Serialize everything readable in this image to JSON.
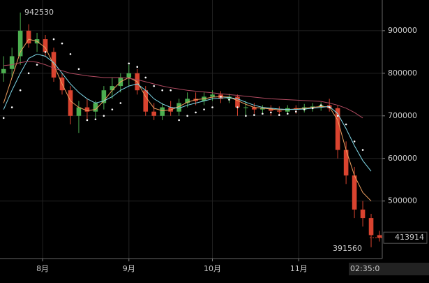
{
  "chart_data": {
    "type": "candlestick",
    "x": [
      1,
      4,
      7,
      10,
      13,
      16,
      19,
      22,
      25,
      28,
      31,
      34,
      37,
      40,
      43,
      46,
      49,
      52,
      55,
      58,
      61,
      64,
      67,
      70,
      73,
      76,
      79,
      82,
      85,
      88,
      91,
      94,
      97,
      100,
      103,
      106,
      109,
      112,
      115,
      118,
      121,
      124,
      127,
      130,
      133,
      136
    ],
    "open": [
      800000,
      810000,
      840000,
      900000,
      870000,
      880000,
      850000,
      790000,
      760000,
      700000,
      720000,
      710000,
      730000,
      760000,
      770000,
      790000,
      800000,
      760000,
      710000,
      700000,
      720000,
      710000,
      730000,
      740000,
      735000,
      745000,
      750000,
      740000,
      745000,
      720000,
      720000,
      715000,
      718000,
      712000,
      710000,
      718000,
      715000,
      720000,
      722000,
      725000,
      718000,
      620000,
      560000,
      480000,
      460000,
      420000
    ],
    "high": [
      840000,
      860000,
      942530,
      915000,
      895000,
      890000,
      860000,
      800000,
      770000,
      735000,
      740000,
      735000,
      770000,
      790000,
      800000,
      820000,
      810000,
      770000,
      730000,
      730000,
      735000,
      740000,
      755000,
      755000,
      755000,
      760000,
      758000,
      752000,
      750000,
      735000,
      730000,
      725000,
      725000,
      722000,
      725000,
      725000,
      728000,
      730000,
      732000,
      740000,
      725000,
      640000,
      580000,
      500000,
      470000,
      430000
    ],
    "low": [
      780000,
      790000,
      820000,
      860000,
      850000,
      840000,
      780000,
      750000,
      680000,
      660000,
      690000,
      695000,
      715000,
      740000,
      755000,
      770000,
      750000,
      700000,
      690000,
      690000,
      700000,
      700000,
      720000,
      725000,
      725000,
      735000,
      730000,
      730000,
      700000,
      700000,
      705000,
      705000,
      700000,
      700000,
      705000,
      705000,
      708000,
      710000,
      712000,
      710000,
      600000,
      540000,
      460000,
      440000,
      391560,
      405000
    ],
    "close": [
      810000,
      840000,
      900000,
      870000,
      880000,
      850000,
      790000,
      760000,
      700000,
      720000,
      710000,
      730000,
      760000,
      770000,
      790000,
      800000,
      760000,
      710000,
      700000,
      720000,
      710000,
      730000,
      740000,
      735000,
      745000,
      750000,
      740000,
      745000,
      720000,
      720000,
      715000,
      718000,
      712000,
      710000,
      718000,
      715000,
      720000,
      722000,
      725000,
      718000,
      620000,
      560000,
      480000,
      460000,
      420000,
      413914
    ],
    "up_color": "#4caf50",
    "down_color": "#d9432f",
    "series": [
      {
        "color": "#f0a060",
        "values": [
          730000,
          790000,
          850000,
          880000,
          875000,
          860000,
          820000,
          775000,
          735000,
          720000,
          712000,
          715000,
          735000,
          760000,
          780000,
          790000,
          780000,
          745000,
          718000,
          712000,
          714000,
          722000,
          732000,
          738000,
          740000,
          744000,
          745000,
          744000,
          736000,
          727000,
          720000,
          718000,
          716000,
          714000,
          715000,
          716000,
          718000,
          720000,
          722000,
          721000,
          690000,
          620000,
          560000,
          520000,
          500000,
          null
        ]
      },
      {
        "color": "#7fd8e8",
        "values": [
          715000,
          760000,
          800000,
          835000,
          845000,
          840000,
          825000,
          800000,
          775000,
          755000,
          740000,
          730000,
          735000,
          745000,
          760000,
          770000,
          775000,
          760000,
          740000,
          728000,
          720000,
          718000,
          725000,
          730000,
          735000,
          740000,
          742000,
          743000,
          740000,
          732000,
          725000,
          720000,
          718000,
          716000,
          715000,
          715000,
          716000,
          718000,
          720000,
          722000,
          705000,
          670000,
          630000,
          595000,
          570000,
          null
        ]
      },
      {
        "color": "#b04a60",
        "values": [
          818000,
          820000,
          825000,
          828000,
          826000,
          820000,
          812000,
          806000,
          800000,
          797000,
          794000,
          792000,
          790000,
          790000,
          790000,
          788000,
          785000,
          780000,
          775000,
          770000,
          766000,
          763000,
          760000,
          758000,
          756000,
          754000,
          752000,
          750000,
          748000,
          746000,
          744000,
          742000,
          740000,
          739000,
          738000,
          737000,
          736000,
          735000,
          734000,
          730000,
          725000,
          718000,
          708000,
          695000,
          null,
          null
        ]
      }
    ],
    "psar": {
      "color": "#ffffff",
      "values": [
        695000,
        720000,
        760000,
        800000,
        820000,
        850000,
        880000,
        870000,
        845000,
        810000,
        690000,
        692000,
        700000,
        715000,
        730000,
        823000,
        815000,
        790000,
        770000,
        760000,
        760000,
        690000,
        700000,
        708000,
        715000,
        720000,
        745000,
        738000,
        720000,
        700000,
        702000,
        705000,
        708000,
        702000,
        705000,
        710000,
        715000,
        718000,
        725000,
        720000,
        700000,
        680000,
        640000,
        620000,
        null,
        null
      ]
    },
    "xlim": [
      -0.3,
      137
    ],
    "xticks": [
      {
        "value": 15,
        "label": "8月"
      },
      {
        "value": 46,
        "label": "9月"
      },
      {
        "value": 76,
        "label": "10月"
      },
      {
        "value": 107,
        "label": "11月"
      }
    ],
    "ylim": [
      365000,
      972000
    ],
    "yticks": [
      500000,
      600000,
      700000,
      800000,
      900000
    ],
    "grid": true,
    "high_label": 942530,
    "low_label": 391560,
    "last_price": 413914,
    "time_label": "02:35:0"
  }
}
